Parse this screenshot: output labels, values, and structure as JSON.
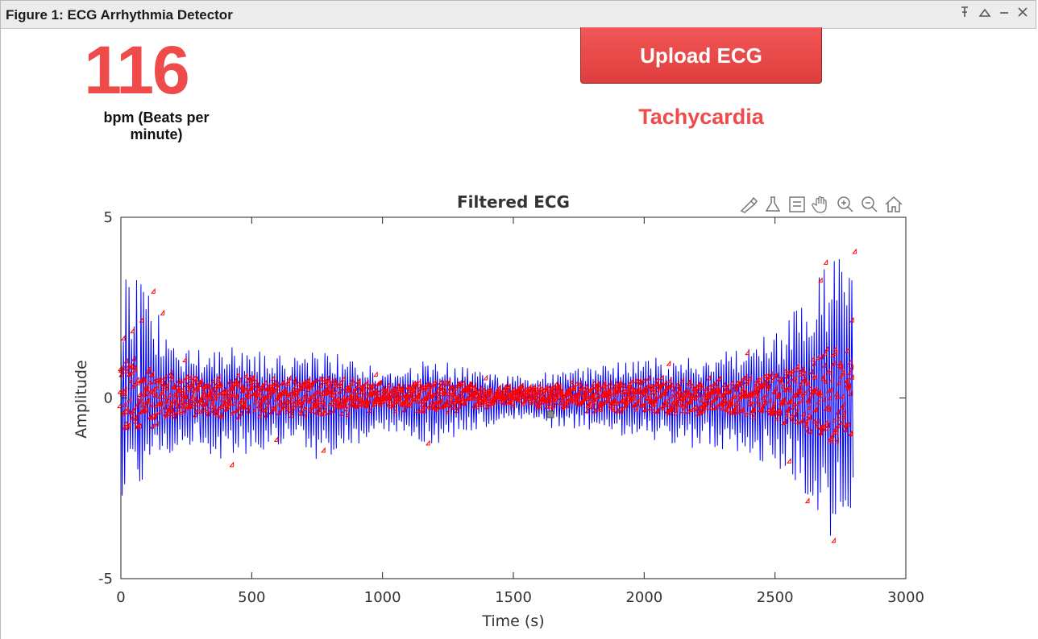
{
  "window": {
    "title": "Figure 1: ECG Arrhythmia Detector"
  },
  "heart_rate": {
    "value": "116",
    "unit": "bpm (Beats per minute)"
  },
  "upload_button": {
    "label": "Upload ECG"
  },
  "diagnosis": {
    "label": "Tachycardia",
    "color": "#ef4b4b"
  },
  "axes_toolbar": {
    "icons": [
      "brush-icon",
      "data-tip-icon",
      "legend-icon",
      "pan-icon",
      "zoom-in-icon",
      "zoom-out-icon",
      "home-icon"
    ]
  },
  "chart_data": {
    "type": "line",
    "title": "Filtered ECG",
    "xlabel": "Time (s)",
    "ylabel": "Amplitude",
    "xlim": [
      0,
      3000
    ],
    "ylim": [
      -5,
      5
    ],
    "xticks": [
      0,
      500,
      1000,
      1500,
      2000,
      2500,
      3000
    ],
    "yticks": [
      -5,
      0,
      5
    ],
    "grid": false,
    "legend": "none",
    "series": [
      {
        "type": "line",
        "color": "#0000ff",
        "envelope_x": [
          0,
          50,
          100,
          150,
          250,
          400,
          600,
          800,
          1000,
          1200,
          1400,
          1500,
          1600,
          1800,
          2000,
          2200,
          2400,
          2550,
          2650,
          2700,
          2750,
          2800
        ],
        "envelope_upper": [
          3.4,
          3.5,
          2.9,
          2.3,
          1.5,
          1.5,
          1.2,
          1.3,
          0.8,
          1.1,
          0.7,
          0.6,
          0.7,
          0.9,
          1.1,
          1.2,
          1.4,
          2.2,
          3.1,
          4.0,
          4.4,
          4.3
        ],
        "envelope_lower": [
          -2.8,
          -2.6,
          -2.2,
          -1.8,
          -1.3,
          -1.8,
          -1.4,
          -1.8,
          -1.0,
          -1.3,
          -0.8,
          -0.6,
          -0.8,
          -1.0,
          -1.3,
          -1.4,
          -1.6,
          -2.2,
          -3.2,
          -4.1,
          -3.8,
          -3.5
        ]
      },
      {
        "type": "scatter",
        "color": "#ff0000",
        "marker": "diamond",
        "peak_x": [
          15,
          50,
          85,
          130,
          165,
          250,
          430,
          600,
          780,
          980,
          1180,
          1400,
          1650,
          2100,
          2400,
          2560,
          2630,
          2680,
          2700,
          2730,
          2800,
          2810
        ],
        "peak_y": [
          1.6,
          1.8,
          2.1,
          2.9,
          2.3,
          1.0,
          -1.9,
          -1.2,
          -1.5,
          0.6,
          -1.3,
          0.5,
          -0.4,
          0.9,
          1.2,
          -1.8,
          -2.9,
          3.2,
          3.7,
          -4.0,
          2.1,
          4.0
        ]
      }
    ]
  }
}
